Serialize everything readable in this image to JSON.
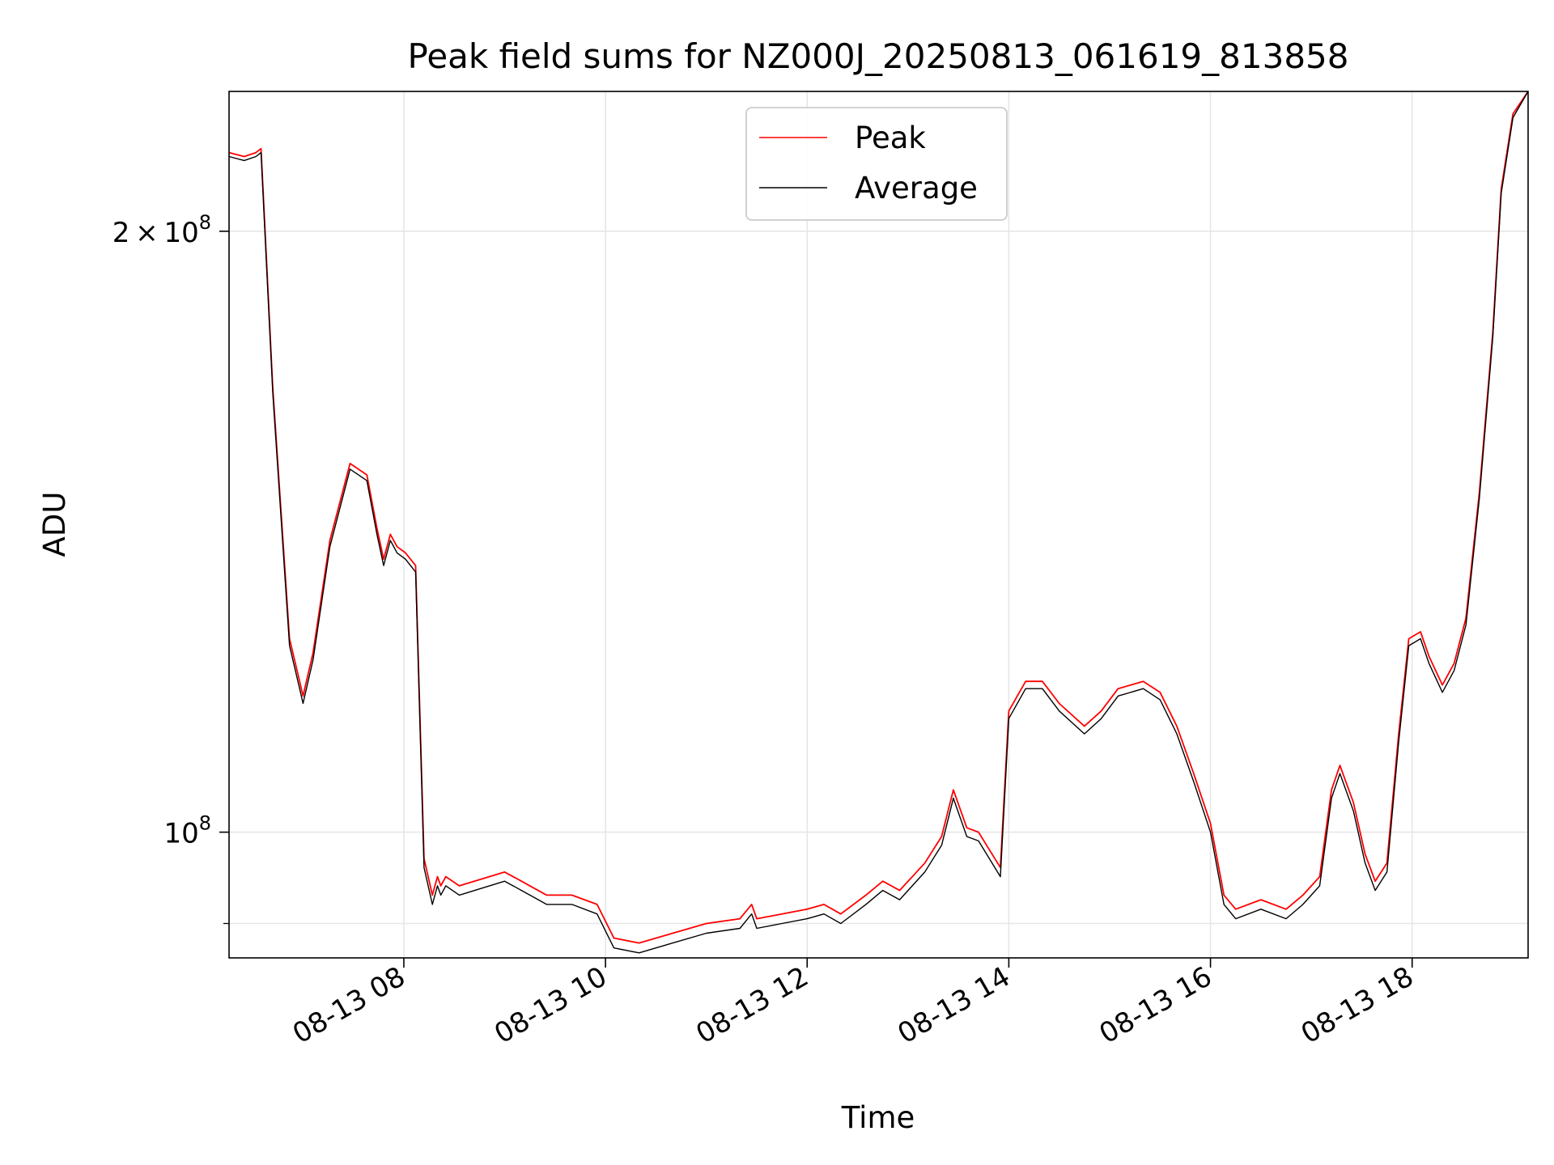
{
  "chart_data": {
    "type": "line",
    "title": "Peak field sums for NZ000J_20250813_061619_813858",
    "xlabel": "Time",
    "ylabel": "ADU",
    "xlim": [
      "2025-08-13 06:16",
      "2025-08-13 19:09"
    ],
    "ylim": [
      86500000,
      235000000
    ],
    "yscale": "log",
    "grid": true,
    "legend_position": "upper center",
    "x_ticks": [
      {
        "value": "2025-08-13 08:00",
        "label": "08-13 08"
      },
      {
        "value": "2025-08-13 10:00",
        "label": "08-13 10"
      },
      {
        "value": "2025-08-13 12:00",
        "label": "08-13 12"
      },
      {
        "value": "2025-08-13 14:00",
        "label": "08-13 14"
      },
      {
        "value": "2025-08-13 16:00",
        "label": "08-13 16"
      },
      {
        "value": "2025-08-13 18:00",
        "label": "08-13 18"
      }
    ],
    "y_ticks": [
      {
        "value": 100000000,
        "base": "10",
        "exp": "8"
      },
      {
        "value": 200000000,
        "mantissa": "2",
        "base": "10",
        "exp": "8"
      }
    ],
    "y_minor_ticks": [
      90000000
    ],
    "series": [
      {
        "name": "Peak",
        "color": "#ff0000",
        "x": [
          "2025-08-13 06:16",
          "2025-08-13 06:25",
          "2025-08-13 06:32",
          "2025-08-13 06:35",
          "2025-08-13 06:42",
          "2025-08-13 06:52",
          "2025-08-13 06:58",
          "2025-08-13 07:00",
          "2025-08-13 07:06",
          "2025-08-13 07:16",
          "2025-08-13 07:28",
          "2025-08-13 07:38",
          "2025-08-13 07:44",
          "2025-08-13 07:48",
          "2025-08-13 07:52",
          "2025-08-13 07:56",
          "2025-08-13 08:01",
          "2025-08-13 08:07",
          "2025-08-13 08:12",
          "2025-08-13 08:17",
          "2025-08-13 08:20",
          "2025-08-13 08:22",
          "2025-08-13 08:25",
          "2025-08-13 08:33",
          "2025-08-13 09:00",
          "2025-08-13 09:10",
          "2025-08-13 09:25",
          "2025-08-13 09:40",
          "2025-08-13 09:55",
          "2025-08-13 10:05",
          "2025-08-13 10:20",
          "2025-08-13 10:40",
          "2025-08-13 11:00",
          "2025-08-13 11:20",
          "2025-08-13 11:27",
          "2025-08-13 11:30",
          "2025-08-13 11:45",
          "2025-08-13 12:00",
          "2025-08-13 12:10",
          "2025-08-13 12:20",
          "2025-08-13 12:35",
          "2025-08-13 12:45",
          "2025-08-13 12:55",
          "2025-08-13 13:10",
          "2025-08-13 13:20",
          "2025-08-13 13:27",
          "2025-08-13 13:35",
          "2025-08-13 13:42",
          "2025-08-13 13:50",
          "2025-08-13 13:55",
          "2025-08-13 14:00",
          "2025-08-13 14:10",
          "2025-08-13 14:20",
          "2025-08-13 14:30",
          "2025-08-13 14:45",
          "2025-08-13 14:55",
          "2025-08-13 15:05",
          "2025-08-13 15:20",
          "2025-08-13 15:30",
          "2025-08-13 15:40",
          "2025-08-13 15:50",
          "2025-08-13 16:00",
          "2025-08-13 16:08",
          "2025-08-13 16:15",
          "2025-08-13 16:30",
          "2025-08-13 16:45",
          "2025-08-13 16:55",
          "2025-08-13 17:05",
          "2025-08-13 17:12",
          "2025-08-13 17:17",
          "2025-08-13 17:25",
          "2025-08-13 17:32",
          "2025-08-13 17:38",
          "2025-08-13 17:45",
          "2025-08-13 17:52",
          "2025-08-13 17:58",
          "2025-08-13 18:05",
          "2025-08-13 18:10",
          "2025-08-13 18:18",
          "2025-08-13 18:25",
          "2025-08-13 18:32",
          "2025-08-13 18:40",
          "2025-08-13 18:48",
          "2025-08-13 18:53",
          "2025-08-13 19:00",
          "2025-08-13 19:09"
        ],
        "y": [
          219000000,
          218000000,
          219000000,
          220000000,
          167000000,
          125000000,
          119000000,
          117000000,
          123000000,
          140000000,
          153000000,
          151000000,
          142000000,
          137000000,
          141000000,
          139000000,
          138000000,
          136000000,
          97000000,
          93000000,
          95000000,
          94000000,
          95000000,
          94000000,
          95500000,
          94500000,
          93000000,
          93000000,
          92000000,
          88500000,
          88000000,
          89000000,
          90000000,
          90500000,
          92000000,
          90500000,
          91000000,
          91500000,
          92000000,
          91000000,
          93000000,
          94500000,
          93500000,
          96500000,
          99500000,
          105000000,
          100500000,
          100000000,
          97500000,
          96000000,
          115000000,
          119000000,
          119000000,
          116000000,
          113000000,
          115000000,
          118000000,
          119000000,
          117500000,
          113000000,
          107000000,
          101000000,
          93000000,
          91500000,
          92500000,
          91500000,
          93000000,
          95000000,
          105000000,
          108000000,
          103500000,
          97500000,
          94500000,
          96500000,
          112000000,
          125000000,
          126000000,
          122500000,
          118500000,
          121500000,
          128000000,
          148000000,
          178000000,
          210000000,
          229000000,
          235000000
        ]
      },
      {
        "name": "Average",
        "color": "#000000",
        "x": [
          "2025-08-13 06:16",
          "2025-08-13 06:25",
          "2025-08-13 06:32",
          "2025-08-13 06:35",
          "2025-08-13 06:42",
          "2025-08-13 06:52",
          "2025-08-13 06:58",
          "2025-08-13 07:00",
          "2025-08-13 07:06",
          "2025-08-13 07:16",
          "2025-08-13 07:28",
          "2025-08-13 07:38",
          "2025-08-13 07:44",
          "2025-08-13 07:48",
          "2025-08-13 07:52",
          "2025-08-13 07:56",
          "2025-08-13 08:01",
          "2025-08-13 08:07",
          "2025-08-13 08:12",
          "2025-08-13 08:17",
          "2025-08-13 08:20",
          "2025-08-13 08:22",
          "2025-08-13 08:25",
          "2025-08-13 08:33",
          "2025-08-13 09:00",
          "2025-08-13 09:10",
          "2025-08-13 09:25",
          "2025-08-13 09:40",
          "2025-08-13 09:55",
          "2025-08-13 10:05",
          "2025-08-13 10:20",
          "2025-08-13 10:40",
          "2025-08-13 11:00",
          "2025-08-13 11:20",
          "2025-08-13 11:27",
          "2025-08-13 11:30",
          "2025-08-13 11:45",
          "2025-08-13 12:00",
          "2025-08-13 12:10",
          "2025-08-13 12:20",
          "2025-08-13 12:35",
          "2025-08-13 12:45",
          "2025-08-13 12:55",
          "2025-08-13 13:10",
          "2025-08-13 13:20",
          "2025-08-13 13:27",
          "2025-08-13 13:35",
          "2025-08-13 13:42",
          "2025-08-13 13:50",
          "2025-08-13 13:55",
          "2025-08-13 14:00",
          "2025-08-13 14:10",
          "2025-08-13 14:20",
          "2025-08-13 14:30",
          "2025-08-13 14:45",
          "2025-08-13 14:55",
          "2025-08-13 15:05",
          "2025-08-13 15:20",
          "2025-08-13 15:30",
          "2025-08-13 15:40",
          "2025-08-13 15:50",
          "2025-08-13 16:00",
          "2025-08-13 16:08",
          "2025-08-13 16:15",
          "2025-08-13 16:30",
          "2025-08-13 16:45",
          "2025-08-13 16:55",
          "2025-08-13 17:05",
          "2025-08-13 17:12",
          "2025-08-13 17:17",
          "2025-08-13 17:25",
          "2025-08-13 17:32",
          "2025-08-13 17:38",
          "2025-08-13 17:45",
          "2025-08-13 17:52",
          "2025-08-13 17:58",
          "2025-08-13 18:05",
          "2025-08-13 18:10",
          "2025-08-13 18:18",
          "2025-08-13 18:25",
          "2025-08-13 18:32",
          "2025-08-13 18:40",
          "2025-08-13 18:48",
          "2025-08-13 18:53",
          "2025-08-13 19:00",
          "2025-08-13 19:09"
        ],
        "y": [
          218000000,
          217000000,
          218000000,
          219000000,
          166000000,
          124000000,
          118000000,
          116000000,
          122000000,
          139000000,
          152000000,
          150000000,
          141000000,
          136000000,
          140000000,
          138000000,
          137000000,
          135000000,
          96000000,
          92000000,
          94000000,
          93000000,
          94000000,
          93000000,
          94500000,
          93500000,
          92000000,
          92000000,
          91000000,
          87500000,
          87000000,
          88000000,
          89000000,
          89500000,
          91000000,
          89500000,
          90000000,
          90500000,
          91000000,
          90000000,
          92000000,
          93500000,
          92500000,
          95500000,
          98500000,
          104000000,
          99500000,
          99000000,
          96500000,
          95000000,
          114000000,
          118000000,
          118000000,
          115000000,
          112000000,
          114000000,
          117000000,
          118000000,
          116500000,
          112000000,
          106000000,
          100000000,
          92000000,
          90500000,
          91500000,
          90500000,
          92000000,
          94000000,
          104000000,
          107000000,
          102500000,
          96500000,
          93500000,
          95500000,
          111000000,
          124000000,
          125000000,
          121500000,
          117500000,
          120500000,
          127000000,
          147000000,
          177000000,
          209000000,
          228000000,
          235000000
        ]
      }
    ]
  }
}
